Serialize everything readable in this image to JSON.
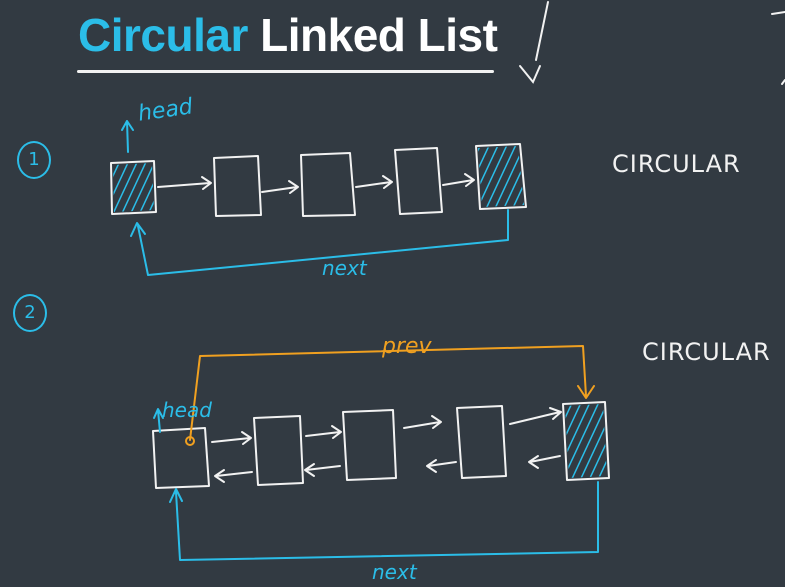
{
  "title": {
    "word1": "Circular",
    "word2": "Linked List"
  },
  "colors": {
    "background": "#323a42",
    "ink": "#f2f2f2",
    "accent_blue": "#2bbde8",
    "accent_orange": "#f0a020"
  },
  "diagram1": {
    "number": "1",
    "head_label": "head",
    "next_label": "next",
    "type_label": "CIRCULAR",
    "node_count": 5
  },
  "diagram2": {
    "number": "2",
    "head_label": "head",
    "prev_label": "prev",
    "next_label": "next",
    "type_label": "CIRCULAR",
    "node_count": 5
  }
}
